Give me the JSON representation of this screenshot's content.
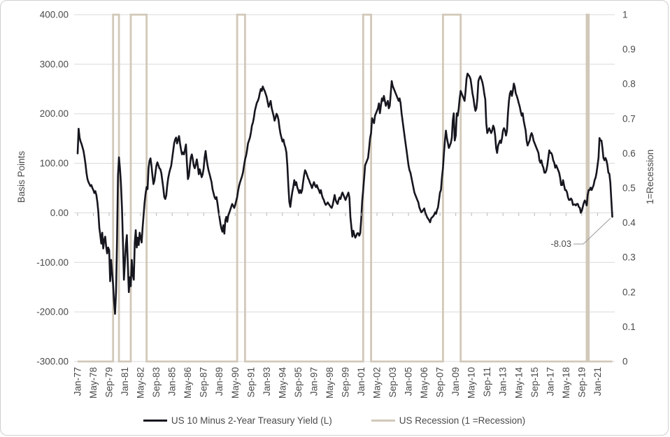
{
  "chart_data": {
    "type": "line",
    "title": "",
    "left_axis": {
      "label": "Basis Points",
      "min": -300,
      "max": 400,
      "tick_labels": [
        "400.00",
        "300.00",
        "200.00",
        "100.00",
        "0.00",
        "-100.00",
        "-200.00",
        "-300.00"
      ]
    },
    "right_axis": {
      "label": "1=Recession",
      "min": 0,
      "max": 1,
      "tick_labels": [
        "1",
        "0.9",
        "0.8",
        "0.7",
        "0.6",
        "0.5",
        "0.4",
        "0.3",
        "0.2",
        "0.1",
        "0"
      ]
    },
    "x_axis": {
      "start_month": "1977-01",
      "end_month": "2022-04",
      "tick_interval_months": 16,
      "tick_labels": [
        "Jan-77",
        "May-78",
        "Sep-79",
        "Jan-81",
        "May-82",
        "Sep-83",
        "Jan-85",
        "May-86",
        "Sep-87",
        "Jan-89",
        "May-90",
        "Sep-91",
        "Jan-93",
        "May-94",
        "Sep-95",
        "Jan-97",
        "May-98",
        "Sep-99",
        "Jan-01",
        "May-02",
        "Sep-03",
        "Jan-05",
        "May-06",
        "Sep-07",
        "Jan-09",
        "May-10",
        "Sep-11",
        "Jan-13",
        "May-14",
        "Sep-15",
        "Jan-17",
        "May-18",
        "Sep-19",
        "Jan-21"
      ]
    },
    "grid": true,
    "legend_position": "bottom",
    "series": [
      {
        "name": "US 10 Minus 2-Year Treasury Yield (L)",
        "axis": "left",
        "color": "#16161f",
        "monthly_values_bp": [
          120,
          170,
          152,
          144,
          139,
          132,
          125,
          112,
          98,
          80,
          68,
          62,
          58,
          54,
          56,
          50,
          46,
          40,
          44,
          36,
          22,
          2,
          -30,
          -45,
          -62,
          -40,
          -72,
          -55,
          -48,
          -68,
          -82,
          -70,
          -75,
          -138,
          -95,
          -120,
          -145,
          -180,
          -204,
          -160,
          -60,
          75,
          112,
          90,
          60,
          10,
          -60,
          -135,
          -100,
          -65,
          -45,
          -105,
          -160,
          -130,
          -148,
          -95,
          -125,
          -135,
          -60,
          -35,
          -70,
          -50,
          -65,
          -40,
          -50,
          -60,
          -30,
          -5,
          20,
          38,
          52,
          48,
          90,
          105,
          110,
          95,
          75,
          58,
          65,
          80,
          95,
          102,
          96,
          90,
          88,
          80,
          65,
          50,
          32,
          28,
          35,
          55,
          70,
          80,
          88,
          95,
          110,
          125,
          140,
          148,
          152,
          140,
          148,
          155,
          140,
          128,
          118,
          122,
          118,
          128,
          138,
          100,
          68,
          75,
          95,
          112,
          118,
          108,
          95,
          90,
          98,
          108,
          95,
          78,
          88,
          80,
          72,
          78,
          90,
          112,
          125,
          108,
          95,
          85,
          78,
          70,
          62,
          48,
          40,
          32,
          28,
          32,
          20,
          5,
          -8,
          -22,
          -32,
          -38,
          -25,
          -42,
          -15,
          -8,
          -18,
          -5,
          0,
          6,
          12,
          18,
          14,
          10,
          16,
          24,
          32,
          45,
          55,
          62,
          68,
          74,
          82,
          95,
          108,
          115,
          126,
          140,
          146,
          152,
          162,
          176,
          182,
          192,
          206,
          214,
          222,
          226,
          232,
          242,
          250,
          246,
          255,
          250,
          246,
          240,
          234,
          224,
          214,
          220,
          226,
          212,
          204,
          196,
          186,
          192,
          200,
          196,
          188,
          172,
          160,
          152,
          144,
          148,
          138,
          132,
          122,
          95,
          55,
          22,
          12,
          28,
          42,
          52,
          66,
          56,
          62,
          52,
          46,
          40,
          46,
          40,
          46,
          62,
          76,
          86,
          82,
          76,
          70,
          66,
          60,
          56,
          50,
          56,
          62,
          56,
          52,
          56,
          50,
          46,
          40,
          46,
          36,
          30,
          26,
          20,
          16,
          18,
          21,
          18,
          15,
          12,
          10,
          16,
          26,
          36,
          26,
          21,
          18,
          26,
          31,
          28,
          36,
          41,
          36,
          31,
          26,
          31,
          36,
          41,
          31,
          -8,
          -28,
          -48,
          -36,
          -44,
          -50,
          -46,
          -41,
          -41,
          -46,
          -41,
          -12,
          24,
          46,
          71,
          96,
          101,
          106,
          111,
          131,
          151,
          161,
          191,
          186,
          181,
          196,
          201,
          206,
          211,
          221,
          201,
          216,
          231,
          226,
          236,
          226,
          216,
          221,
          226,
          211,
          216,
          241,
          266,
          256,
          251,
          246,
          241,
          236,
          231,
          226,
          231,
          221,
          201,
          186,
          171,
          156,
          141,
          126,
          111,
          96,
          86,
          81,
          71,
          61,
          51,
          41,
          36,
          31,
          26,
          21,
          11,
          6,
          1,
          3,
          6,
          9,
          1,
          -4,
          -9,
          -12,
          -15,
          -19,
          -11,
          -9,
          -7,
          -4,
          1,
          -2,
          6,
          11,
          26,
          41,
          46,
          71,
          91,
          121,
          146,
          166,
          151,
          141,
          131,
          136,
          141,
          151,
          186,
          201,
          146,
          156,
          201,
          196,
          211,
          231,
          246,
          241,
          236,
          231,
          226,
          246,
          271,
          281,
          278,
          275,
          270,
          256,
          241,
          231,
          216,
          206,
          211,
          231,
          266,
          272,
          276,
          270,
          264,
          254,
          240,
          229,
          181,
          161,
          166,
          171,
          166,
          161,
          166,
          176,
          171,
          156,
          131,
          121,
          136,
          141,
          146,
          141,
          151,
          166,
          171,
          166,
          156,
          166,
          201,
          226,
          241,
          246,
          236,
          246,
          261,
          254,
          241,
          236,
          229,
          221,
          214,
          204,
          196,
          201,
          186,
          176,
          166,
          146,
          136,
          141,
          146,
          156,
          161,
          156,
          146,
          141,
          136,
          131,
          126,
          121,
          106,
          101,
          106,
          96,
          91,
          81,
          81,
          86,
          96,
          111,
          126,
          121,
          121,
          116,
          106,
          101,
          91,
          96,
          91,
          86,
          81,
          71,
          56,
          56,
          66,
          56,
          46,
          46,
          41,
          31,
          26,
          26,
          29,
          26,
          16,
          17,
          17,
          15,
          18,
          18,
          12,
          10,
          0,
          4,
          12,
          20,
          25,
          21,
          15,
          36,
          46,
          46,
          51,
          46,
          51,
          56,
          66,
          71,
          81,
          96,
          111,
          151,
          146,
          146,
          131,
          111,
          106,
          111,
          106,
          96,
          81,
          79,
          61,
          26,
          -8.03
        ]
      },
      {
        "name": "US Recession (1 =Recession)",
        "axis": "right",
        "color": "#d1c8b9",
        "recession_periods": [
          [
            "1980-01",
            "1980-07"
          ],
          [
            "1981-07",
            "1982-11"
          ],
          [
            "1990-07",
            "1991-03"
          ],
          [
            "2001-03",
            "2001-11"
          ],
          [
            "2007-12",
            "2009-06"
          ],
          [
            "2020-02",
            "2020-04"
          ]
        ]
      }
    ],
    "annotation": {
      "text": "-8.03",
      "value": -8.03,
      "at": "2022-04"
    }
  }
}
